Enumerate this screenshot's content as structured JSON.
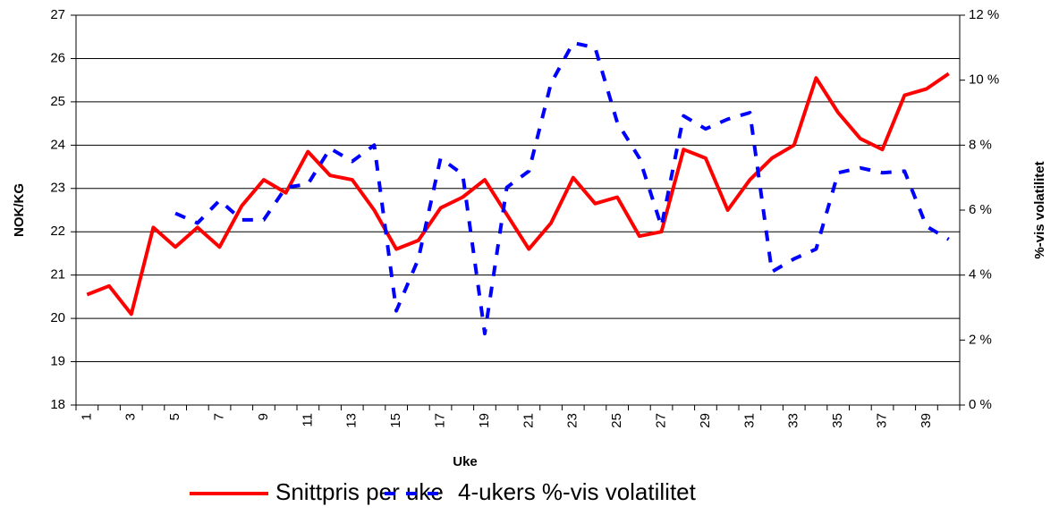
{
  "chart_data": {
    "type": "line",
    "xlabel": "Uke",
    "ylabel": "NOK/KG",
    "y2label": "%-vis volatilitet",
    "categories": [
      1,
      null,
      3,
      null,
      5,
      null,
      7,
      null,
      9,
      null,
      11,
      null,
      13,
      null,
      15,
      null,
      17,
      null,
      19,
      null,
      21,
      null,
      23,
      null,
      25,
      null,
      27,
      null,
      29,
      null,
      31,
      null,
      33,
      null,
      35,
      null,
      37,
      null,
      39,
      null
    ],
    "ylim": [
      18,
      27
    ],
    "yticks": [
      18,
      19,
      20,
      21,
      22,
      23,
      24,
      25,
      26,
      27
    ],
    "y2lim": [
      0,
      12
    ],
    "y2ticks": [
      {
        "value": 0,
        "label": "0 %"
      },
      {
        "value": 2,
        "label": "2 %"
      },
      {
        "value": 4,
        "label": "4 %"
      },
      {
        "value": 6,
        "label": "6 %"
      },
      {
        "value": 8,
        "label": "8 %"
      },
      {
        "value": 10,
        "label": "10 %"
      },
      {
        "value": 12,
        "label": "12 %"
      }
    ],
    "grid": true,
    "legend": "bottom",
    "series": [
      {
        "name": "Snittpris per uke",
        "color": "#ff0000",
        "style": "solid",
        "values": [
          20.55,
          20.75,
          20.1,
          22.1,
          21.65,
          22.1,
          21.65,
          22.6,
          23.2,
          22.9,
          23.85,
          23.3,
          23.2,
          22.5,
          21.6,
          21.8,
          22.55,
          22.8,
          23.2,
          22.4,
          21.6,
          22.2,
          23.25,
          22.65,
          22.8,
          21.9,
          22.0,
          23.9,
          23.7,
          22.5,
          23.2,
          23.7,
          24.0,
          25.55,
          24.75,
          24.15,
          23.9,
          25.15,
          25.3,
          25.65
        ]
      },
      {
        "name": "4-ukers %-vis volatilitet",
        "color": "#0000ff",
        "style": "dashed",
        "axis": "y2",
        "values": [
          null,
          null,
          null,
          null,
          5.9,
          5.6,
          6.3,
          5.7,
          5.7,
          6.7,
          6.8,
          7.9,
          7.5,
          8.0,
          2.9,
          4.5,
          7.6,
          7.1,
          2.2,
          6.7,
          7.2,
          9.9,
          11.15,
          11.0,
          8.7,
          7.6,
          5.5,
          8.9,
          8.5,
          8.8,
          9.0,
          4.1,
          4.5,
          4.8,
          7.15,
          7.3,
          7.15,
          7.2,
          5.5,
          5.1
        ]
      }
    ]
  }
}
